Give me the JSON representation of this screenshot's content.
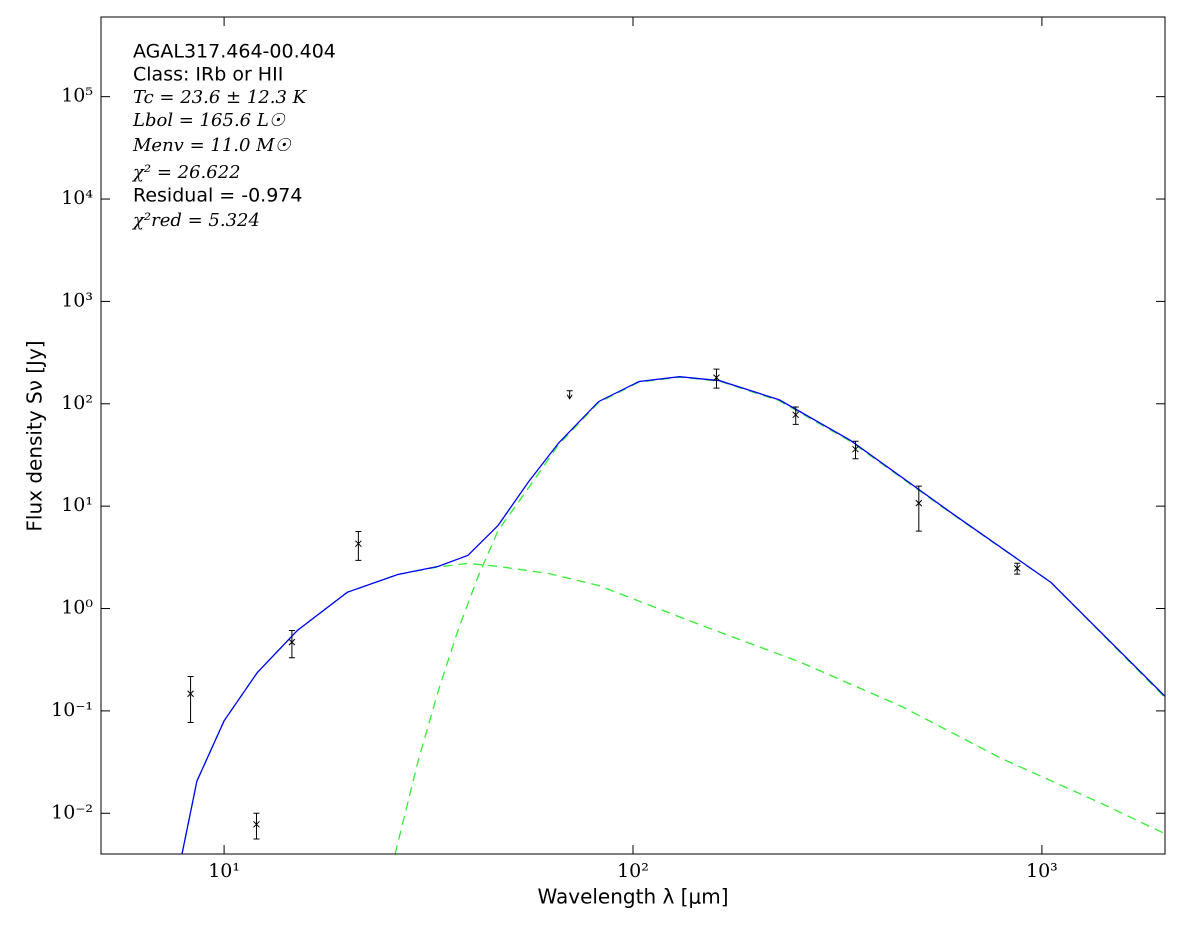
{
  "chart_data": {
    "type": "sed",
    "annotations": [
      "AGAL317.464-00.404",
      "Class: IRb or HII",
      "Tc = 23.6 ± 12.3 K",
      "Lbol = 165.6 L☉",
      "Menv = 11.0 M☉",
      "χ² = 26.622",
      "Residual = -0.974",
      "χ²red = 5.324"
    ],
    "x_label": "Wavelength λ [μm]",
    "y_label": "Flux density Sν [Jy]",
    "log_x": true,
    "log_y": true,
    "xlim": [
      5,
      2000
    ],
    "ylim": [
      0.004,
      600000
    ],
    "xticks": [
      {
        "value": 10,
        "label": "10¹"
      },
      {
        "value": 100,
        "label": "10²"
      },
      {
        "value": 1000,
        "label": "10³"
      }
    ],
    "yticks": [
      {
        "value": 0.01,
        "label": "10⁻²"
      },
      {
        "value": 0.1,
        "label": "10⁻¹"
      },
      {
        "value": 1,
        "label": "10⁰"
      },
      {
        "value": 10,
        "label": "10¹"
      },
      {
        "value": 100,
        "label": "10²"
      },
      {
        "value": 1000,
        "label": "10³"
      },
      {
        "value": 10000,
        "label": "10⁴"
      },
      {
        "value": 100000,
        "label": "10⁵"
      }
    ],
    "points": {
      "color": "#000000",
      "x": [
        8.28,
        12,
        14.65,
        21.3,
        160,
        250,
        350,
        500,
        870
      ],
      "values": [
        0.147,
        0.0078,
        0.47,
        4.3,
        180,
        78,
        36,
        10.7,
        2.47
      ],
      "errors": [
        0.07,
        0.0022,
        0.14,
        1.35,
        38,
        15,
        7,
        5,
        0.3
      ]
    },
    "upper_limits": {
      "color": "#000000",
      "x": [
        70
      ],
      "values": [
        134
      ]
    },
    "model_total": {
      "color": "#0000ff",
      "dashed": false,
      "x": [
        7.89,
        8.58,
        10,
        12.05,
        15.1,
        20,
        26.6,
        33.4,
        39.5,
        46.8,
        55.5,
        65.8,
        82.4,
        103.5,
        130,
        163,
        228,
        340,
        598,
        1052,
        2018
      ],
      "values": [
        0.004,
        0.0206,
        0.08,
        0.236,
        0.61,
        1.44,
        2.15,
        2.58,
        3.31,
        6.5,
        17.2,
        41.5,
        105,
        165,
        184,
        168,
        109,
        44,
        8.7,
        1.8,
        0.134
      ]
    },
    "model_warm": {
      "color": "#33ee33",
      "dashed": true,
      "x": [
        7.89,
        8.58,
        10,
        12.05,
        15.1,
        20,
        26.6,
        33.4,
        39.5,
        46.8,
        62.2,
        82.4,
        145,
        256,
        451,
        793,
        1396,
        2018
      ],
      "values": [
        0.004,
        0.0206,
        0.08,
        0.236,
        0.61,
        1.44,
        2.15,
        2.55,
        2.76,
        2.58,
        2.2,
        1.68,
        0.7,
        0.3,
        0.112,
        0.0346,
        0.0125,
        0.0062
      ]
    },
    "model_cold": {
      "color": "#33ee33",
      "dashed": true,
      "x": [
        26.2,
        29.8,
        33.4,
        37.3,
        41.9,
        46.8,
        55.5,
        65.8,
        82.4,
        103.5,
        130,
        163,
        228,
        340,
        598,
        1052,
        2018
      ],
      "values": [
        0.004,
        0.032,
        0.157,
        0.61,
        2.1,
        5.8,
        15,
        40,
        103,
        163,
        182,
        166,
        107,
        43,
        8.6,
        1.8,
        0.13
      ]
    }
  }
}
